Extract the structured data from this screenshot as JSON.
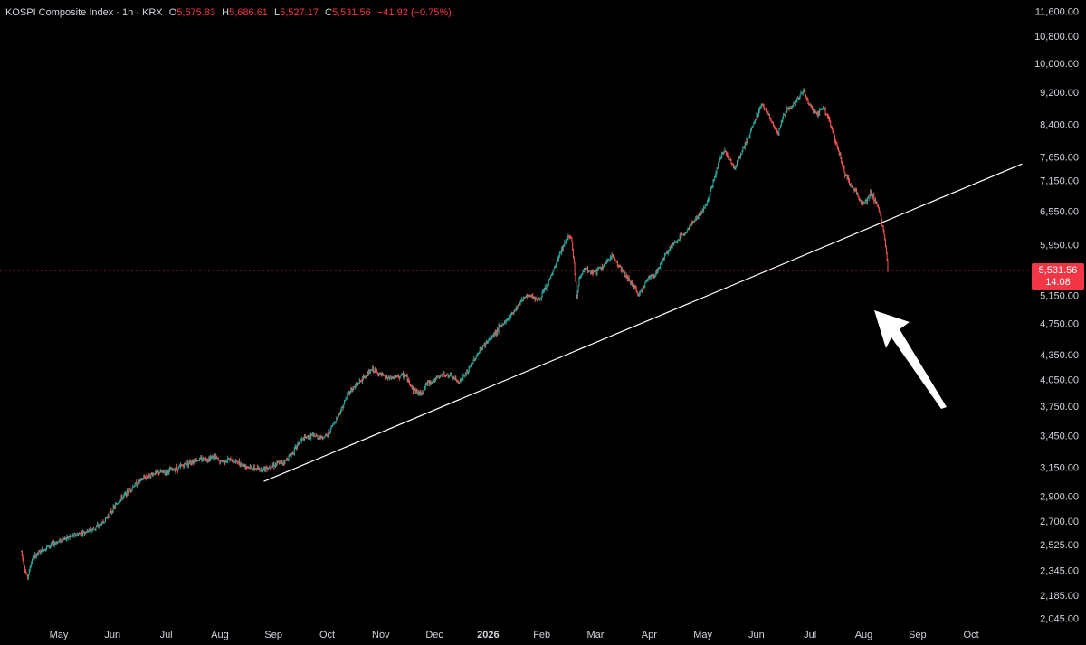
{
  "legend": {
    "symbol": "KOSPI Composite Index · 1h · KRX",
    "open_label": "O",
    "open": "5,575.83",
    "high_label": "H",
    "high": "5,686.61",
    "low_label": "L",
    "low": "5,527.17",
    "close_label": "C",
    "close": "5,531.56",
    "change": "−41.92 (−0.75%)"
  },
  "price_tag": {
    "price": "5,531.56",
    "countdown": "14:08"
  },
  "colors": {
    "up": "#26a69a",
    "down": "#ef5350",
    "tag": "#f23645",
    "line": "#ffffff",
    "background": "#000000"
  },
  "chart_data": {
    "type": "line",
    "title": "KOSPI Composite Index · 1h · KRX",
    "y_scale": "log",
    "ylim": [
      1980,
      11800
    ],
    "y_ticks": [
      {
        "value": 11600,
        "label": "11,600.00"
      },
      {
        "value": 10800,
        "label": "10,800.00"
      },
      {
        "value": 10000,
        "label": "10,000.00"
      },
      {
        "value": 9200,
        "label": "9,200.00"
      },
      {
        "value": 8400,
        "label": "8,400.00"
      },
      {
        "value": 7650,
        "label": "7,650.00"
      },
      {
        "value": 7150,
        "label": "7,150.00"
      },
      {
        "value": 6550,
        "label": "6,550.00"
      },
      {
        "value": 5950,
        "label": "5,950.00"
      },
      {
        "value": 5150,
        "label": "5,150.00"
      },
      {
        "value": 4750,
        "label": "4,750.00"
      },
      {
        "value": 4350,
        "label": "4,350.00"
      },
      {
        "value": 4050,
        "label": "4,050.00"
      },
      {
        "value": 3750,
        "label": "3,750.00"
      },
      {
        "value": 3450,
        "label": "3,450.00"
      },
      {
        "value": 3150,
        "label": "3,150.00"
      },
      {
        "value": 2900,
        "label": "2,900.00"
      },
      {
        "value": 2700,
        "label": "2,700.00"
      },
      {
        "value": 2525,
        "label": "2,525.00"
      },
      {
        "value": 2345,
        "label": "2,345.00"
      },
      {
        "value": 2185,
        "label": "2,185.00"
      },
      {
        "value": 2045,
        "label": "2,045.00"
      }
    ],
    "x_ticks": [
      {
        "t": 1,
        "label": "May"
      },
      {
        "t": 2,
        "label": "Jun"
      },
      {
        "t": 3,
        "label": "Jul"
      },
      {
        "t": 4,
        "label": "Aug"
      },
      {
        "t": 5,
        "label": "Sep"
      },
      {
        "t": 6,
        "label": "Oct"
      },
      {
        "t": 7,
        "label": "Nov"
      },
      {
        "t": 8,
        "label": "Dec"
      },
      {
        "t": 9,
        "label": "2026",
        "bold": true
      },
      {
        "t": 10,
        "label": "Feb"
      },
      {
        "t": 11,
        "label": "Mar"
      },
      {
        "t": 12,
        "label": "Apr"
      },
      {
        "t": 13,
        "label": "May"
      },
      {
        "t": 14,
        "label": "Jun"
      },
      {
        "t": 15,
        "label": "Jul"
      },
      {
        "t": 16,
        "label": "Aug"
      },
      {
        "t": 17,
        "label": "Sep"
      },
      {
        "t": 18,
        "label": "Oct"
      }
    ],
    "xlim": [
      0.28,
      19.0
    ],
    "series": [
      {
        "values": [
          [
            0.3,
            2480
          ],
          [
            0.34,
            2400
          ],
          [
            0.38,
            2330
          ],
          [
            0.42,
            2300
          ],
          [
            0.5,
            2420
          ],
          [
            0.6,
            2460
          ],
          [
            0.75,
            2500
          ],
          [
            0.9,
            2530
          ],
          [
            1.05,
            2560
          ],
          [
            1.2,
            2580
          ],
          [
            1.35,
            2600
          ],
          [
            1.5,
            2620
          ],
          [
            1.65,
            2640
          ],
          [
            1.8,
            2680
          ],
          [
            1.95,
            2760
          ],
          [
            2.1,
            2850
          ],
          [
            2.25,
            2920
          ],
          [
            2.4,
            2990
          ],
          [
            2.6,
            3060
          ],
          [
            2.8,
            3100
          ],
          [
            3.0,
            3110
          ],
          [
            3.2,
            3140
          ],
          [
            3.4,
            3190
          ],
          [
            3.6,
            3220
          ],
          [
            3.8,
            3230
          ],
          [
            3.9,
            3250
          ],
          [
            4.0,
            3200
          ],
          [
            4.2,
            3220
          ],
          [
            4.4,
            3180
          ],
          [
            4.6,
            3140
          ],
          [
            4.75,
            3130
          ],
          [
            4.9,
            3150
          ],
          [
            5.05,
            3180
          ],
          [
            5.2,
            3200
          ],
          [
            5.35,
            3280
          ],
          [
            5.5,
            3400
          ],
          [
            5.7,
            3450
          ],
          [
            5.9,
            3430
          ],
          [
            6.0,
            3450
          ],
          [
            6.1,
            3550
          ],
          [
            6.25,
            3700
          ],
          [
            6.4,
            3900
          ],
          [
            6.55,
            3990
          ],
          [
            6.7,
            4080
          ],
          [
            6.85,
            4170
          ],
          [
            7.0,
            4100
          ],
          [
            7.15,
            4060
          ],
          [
            7.3,
            4080
          ],
          [
            7.45,
            4100
          ],
          [
            7.6,
            3940
          ],
          [
            7.75,
            3880
          ],
          [
            7.85,
            4000
          ],
          [
            8.0,
            4040
          ],
          [
            8.15,
            4110
          ],
          [
            8.3,
            4090
          ],
          [
            8.45,
            4020
          ],
          [
            8.6,
            4120
          ],
          [
            8.75,
            4300
          ],
          [
            8.9,
            4450
          ],
          [
            9.05,
            4560
          ],
          [
            9.2,
            4690
          ],
          [
            9.35,
            4800
          ],
          [
            9.5,
            4950
          ],
          [
            9.65,
            5110
          ],
          [
            9.8,
            5150
          ],
          [
            9.95,
            5080
          ],
          [
            10.1,
            5300
          ],
          [
            10.25,
            5600
          ],
          [
            10.4,
            5940
          ],
          [
            10.5,
            6120
          ],
          [
            10.55,
            6080
          ],
          [
            10.6,
            5650
          ],
          [
            10.65,
            5080
          ],
          [
            10.7,
            5420
          ],
          [
            10.8,
            5550
          ],
          [
            10.9,
            5500
          ],
          [
            11.05,
            5530
          ],
          [
            11.2,
            5640
          ],
          [
            11.3,
            5780
          ],
          [
            11.4,
            5650
          ],
          [
            11.5,
            5520
          ],
          [
            11.6,
            5400
          ],
          [
            11.7,
            5300
          ],
          [
            11.8,
            5150
          ],
          [
            11.9,
            5300
          ],
          [
            12.0,
            5420
          ],
          [
            12.1,
            5460
          ],
          [
            12.2,
            5600
          ],
          [
            12.3,
            5800
          ],
          [
            12.4,
            5900
          ],
          [
            12.55,
            6050
          ],
          [
            12.7,
            6200
          ],
          [
            12.85,
            6400
          ],
          [
            13.0,
            6560
          ],
          [
            13.1,
            6800
          ],
          [
            13.2,
            7150
          ],
          [
            13.3,
            7550
          ],
          [
            13.4,
            7800
          ],
          [
            13.5,
            7600
          ],
          [
            13.6,
            7400
          ],
          [
            13.7,
            7700
          ],
          [
            13.8,
            7950
          ],
          [
            13.9,
            8250
          ],
          [
            14.0,
            8600
          ],
          [
            14.1,
            8900
          ],
          [
            14.2,
            8700
          ],
          [
            14.3,
            8400
          ],
          [
            14.4,
            8150
          ],
          [
            14.5,
            8600
          ],
          [
            14.6,
            8800
          ],
          [
            14.7,
            8900
          ],
          [
            14.8,
            9100
          ],
          [
            14.88,
            9250
          ],
          [
            14.95,
            9000
          ],
          [
            15.05,
            8750
          ],
          [
            15.15,
            8650
          ],
          [
            15.25,
            8850
          ],
          [
            15.35,
            8500
          ],
          [
            15.45,
            8100
          ],
          [
            15.55,
            7700
          ],
          [
            15.65,
            7300
          ],
          [
            15.75,
            7050
          ],
          [
            15.85,
            6950
          ],
          [
            15.95,
            6700
          ],
          [
            16.05,
            6750
          ],
          [
            16.12,
            6900
          ],
          [
            16.2,
            6780
          ],
          [
            16.26,
            6650
          ],
          [
            16.32,
            6420
          ],
          [
            16.38,
            6080
          ],
          [
            16.42,
            5800
          ],
          [
            16.45,
            5531.56
          ]
        ]
      }
    ],
    "trendline": {
      "from": [
        4.82,
        3025
      ],
      "to": [
        18.95,
        7500
      ]
    },
    "last_price": 5531.56,
    "annotations": [
      {
        "type": "arrow",
        "color": "white",
        "points_to": "last price drop below trendline"
      }
    ]
  }
}
